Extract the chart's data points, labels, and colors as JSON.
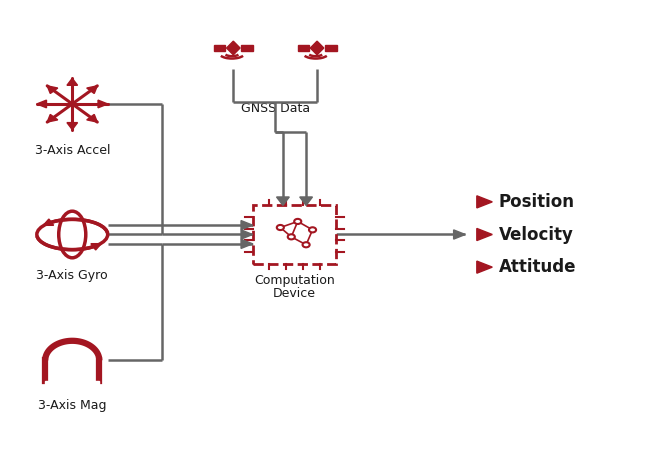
{
  "bg_color": "#ffffff",
  "dark_red": "#8B1A1A",
  "red": "#A31621",
  "arrow_color": "#666666",
  "text_color": "#1a1a1a",
  "labels": {
    "accel": "3-Axis Accel",
    "gyro": "3-Axis Gyro",
    "mag": "3-Axis Mag",
    "gnss": "GNSS Data",
    "comp_line1": "Computation",
    "comp_line2": "Device",
    "position": "Position",
    "velocity": "Velocity",
    "attitude": "Attitude"
  },
  "figsize": [
    6.47,
    4.69
  ],
  "dpi": 100
}
